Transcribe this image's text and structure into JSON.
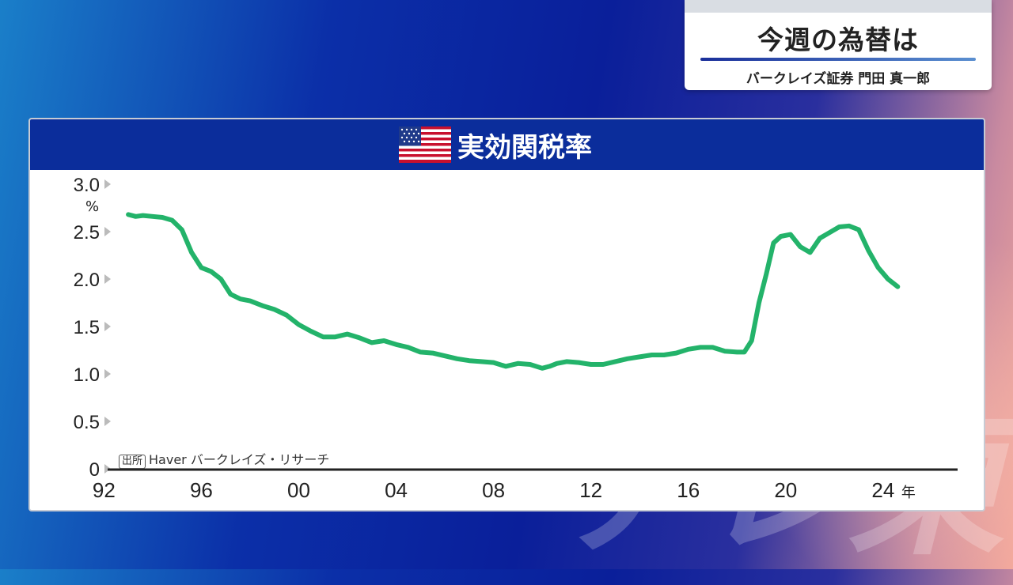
{
  "topic": {
    "title": "今週の為替は",
    "subtitle": "バークレイズ証券 門田 真一郎"
  },
  "watermark": "テレ東",
  "colors": {
    "line": "#23b36a",
    "header": "#0b2d9b",
    "axis": "#222222",
    "tick_arrow": "#bbbbbb"
  },
  "icons": {
    "flag": "us-flag-icon"
  },
  "source": {
    "badge": "出所",
    "text": "Haver バークレイズ・リサーチ"
  },
  "chart_data": {
    "type": "line",
    "title": "実効関税率",
    "ylabel": "%",
    "xlabel": "",
    "x_unit_label": "年",
    "ylim": [
      0,
      3.0
    ],
    "xlim": [
      1991.5,
      2025.5
    ],
    "y_ticks": [
      {
        "value": 0,
        "label": "0"
      },
      {
        "value": 0.5,
        "label": "0.5"
      },
      {
        "value": 1.0,
        "label": "1.0"
      },
      {
        "value": 1.5,
        "label": "1.5"
      },
      {
        "value": 2.0,
        "label": "2.0"
      },
      {
        "value": 2.5,
        "label": "2.5"
      },
      {
        "value": 3.0,
        "label": "3.0"
      }
    ],
    "x_ticks": [
      {
        "value": 1992,
        "label": "92"
      },
      {
        "value": 1996,
        "label": "96"
      },
      {
        "value": 2000,
        "label": "00"
      },
      {
        "value": 2004,
        "label": "04"
      },
      {
        "value": 2008,
        "label": "08"
      },
      {
        "value": 2012,
        "label": "12"
      },
      {
        "value": 2016,
        "label": "16"
      },
      {
        "value": 2020,
        "label": "20"
      },
      {
        "value": 2024,
        "label": "24"
      }
    ],
    "grid": false,
    "series": [
      {
        "x": [
          1993.0,
          1993.3,
          1993.6,
          1994.0,
          1994.4,
          1994.8,
          1995.2,
          1995.6,
          1996.0,
          1996.4,
          1996.8,
          1997.2,
          1997.6,
          1998.0,
          1998.5,
          1999.0,
          1999.5,
          2000.0,
          2000.5,
          2001.0,
          2001.5,
          2002.0,
          2002.5,
          2003.0,
          2003.5,
          2004.0,
          2004.5,
          2005.0,
          2005.5,
          2006.0,
          2006.5,
          2007.0,
          2007.5,
          2008.0,
          2008.5,
          2009.0,
          2009.5,
          2010.0,
          2010.3,
          2010.6,
          2011.0,
          2011.5,
          2012.0,
          2012.5,
          2013.0,
          2013.5,
          2014.0,
          2014.5,
          2015.0,
          2015.5,
          2016.0,
          2016.5,
          2017.0,
          2017.5,
          2018.0,
          2018.3,
          2018.6,
          2018.9,
          2019.2,
          2019.5,
          2019.8,
          2020.2,
          2020.6,
          2021.0,
          2021.4,
          2021.8,
          2022.2,
          2022.6,
          2023.0,
          2023.4,
          2023.8,
          2024.2,
          2024.6
        ],
        "y": [
          2.68,
          2.66,
          2.67,
          2.66,
          2.65,
          2.62,
          2.52,
          2.28,
          2.12,
          2.08,
          2.0,
          1.84,
          1.79,
          1.77,
          1.72,
          1.68,
          1.62,
          1.52,
          1.45,
          1.39,
          1.39,
          1.42,
          1.38,
          1.33,
          1.35,
          1.31,
          1.28,
          1.23,
          1.22,
          1.19,
          1.16,
          1.14,
          1.13,
          1.12,
          1.08,
          1.11,
          1.1,
          1.06,
          1.08,
          1.11,
          1.13,
          1.12,
          1.1,
          1.1,
          1.13,
          1.16,
          1.18,
          1.2,
          1.2,
          1.22,
          1.26,
          1.28,
          1.28,
          1.24,
          1.23,
          1.23,
          1.35,
          1.75,
          2.05,
          2.38,
          2.45,
          2.47,
          2.34,
          2.28,
          2.43,
          2.49,
          2.55,
          2.56,
          2.52,
          2.3,
          2.12,
          2.0,
          1.92
        ]
      }
    ]
  }
}
